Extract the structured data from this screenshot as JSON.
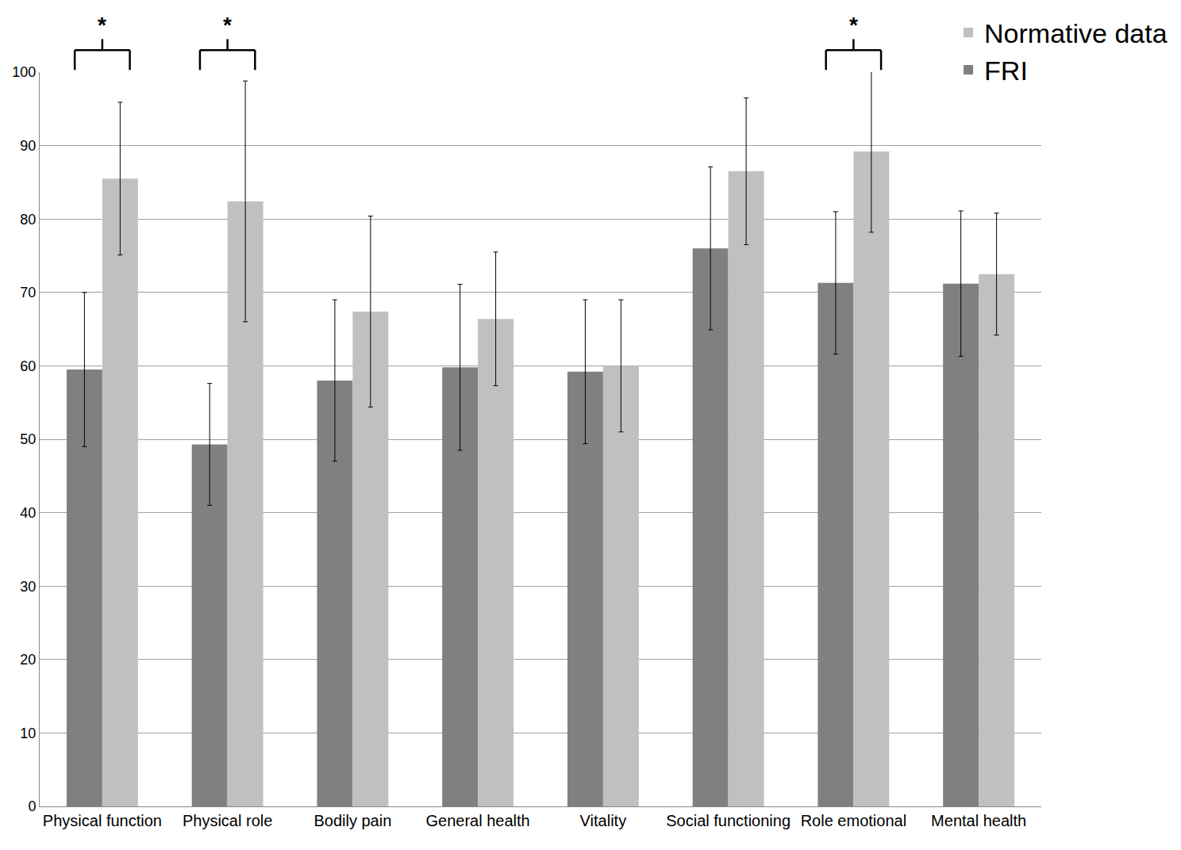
{
  "chart_data": {
    "type": "bar",
    "categories": [
      "Physical function",
      "Physical role",
      "Bodily pain",
      "General health",
      "Vitality",
      "Social functioning",
      "Role emotional",
      "Mental health"
    ],
    "series": [
      {
        "name": "FRI",
        "color": "#808080",
        "values": [
          59.5,
          49.3,
          58,
          59.8,
          59.2,
          76,
          71.3,
          71.2
        ],
        "errors": [
          10.5,
          8.3,
          11,
          11.3,
          9.8,
          11.1,
          9.7,
          9.9
        ]
      },
      {
        "name": "Normative data",
        "color": "#c0c0c0",
        "values": [
          85.5,
          82.4,
          67.4,
          66.4,
          60,
          86.5,
          89.2,
          72.5
        ],
        "errors": [
          10.4,
          16.4,
          13,
          9.1,
          9,
          10,
          11,
          8.3
        ]
      }
    ],
    "ylim": [
      0,
      100
    ],
    "yticks": [
      0,
      10,
      20,
      30,
      40,
      50,
      60,
      70,
      80,
      90,
      100
    ],
    "grid": true,
    "legend": "top right",
    "annotations": [
      {
        "category": "Physical function",
        "text": "*"
      },
      {
        "category": "Physical role",
        "text": "*"
      },
      {
        "category": "Role emotional",
        "text": "*"
      }
    ]
  }
}
